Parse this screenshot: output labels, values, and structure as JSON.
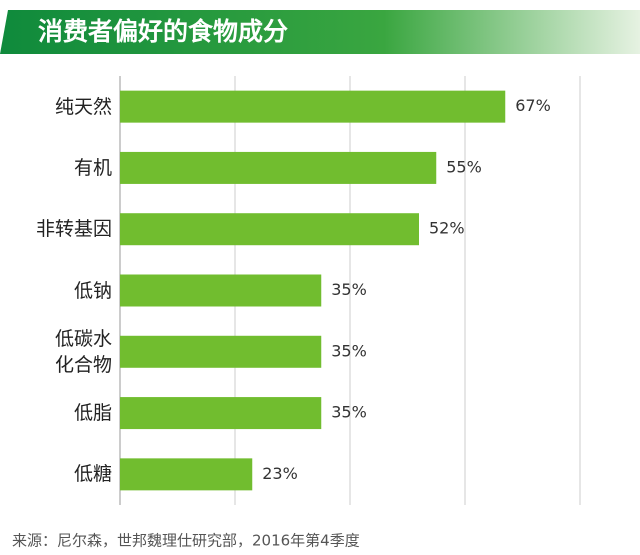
{
  "chart_data": {
    "type": "bar",
    "orientation": "horizontal",
    "title": "消费者偏好的食物成分",
    "categories": [
      "纯天然",
      "有机",
      "非转基因",
      "低钠",
      "低碳水化合物",
      "低脂",
      "低糖"
    ],
    "values": [
      67,
      55,
      52,
      35,
      35,
      35,
      23
    ],
    "value_labels": [
      "67%",
      "55%",
      "52%",
      "35%",
      "35%",
      "35%",
      "23%"
    ],
    "color": "#71bd2f",
    "xlim": [
      0,
      80
    ],
    "xticks": [
      0,
      20,
      40,
      60,
      80
    ],
    "grid": true,
    "source": "来源：尼尔森，世邦魏理仕研究部，2016年第4季度"
  }
}
